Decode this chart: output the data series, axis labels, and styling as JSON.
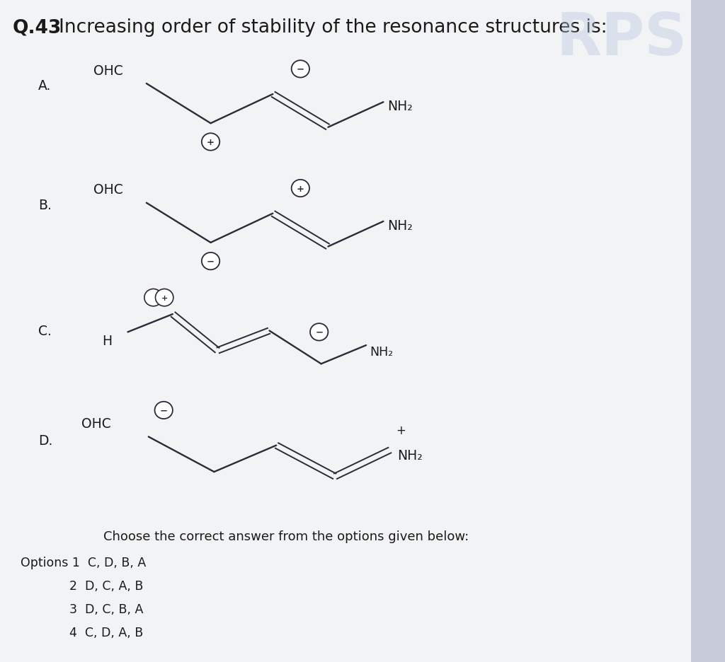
{
  "title_q": "Q.43",
  "title_rest": "  Increasing order of stability of the resonance structures is:",
  "title_fontsize": 19,
  "background_color": "#e8eaf0",
  "panel_color": "#f0f0f0",
  "text_color": "#1a1a1a",
  "dark_color": "#1a1a2e",
  "options_text": "Choose the correct answer from the options given below:",
  "option1": "Options 1  C, D, B, A",
  "option2": "2  D, C, A, B",
  "option3": "3  D, C, B, A",
  "option4": "4  C, D, A, B",
  "rps_color": "#b0c4de",
  "rps_alpha": 0.5
}
